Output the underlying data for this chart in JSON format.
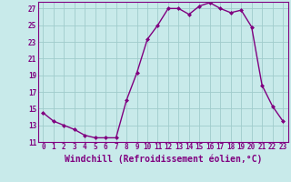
{
  "x": [
    0,
    1,
    2,
    3,
    4,
    5,
    6,
    7,
    8,
    9,
    10,
    11,
    12,
    13,
    14,
    15,
    16,
    17,
    18,
    19,
    20,
    21,
    22,
    23
  ],
  "y": [
    14.5,
    13.5,
    13.0,
    12.5,
    11.8,
    11.5,
    11.5,
    11.5,
    16.0,
    19.3,
    23.3,
    25.0,
    27.0,
    27.0,
    26.3,
    27.3,
    27.7,
    27.0,
    26.5,
    26.8,
    24.8,
    17.8,
    15.3,
    13.5
  ],
  "line_color": "#800080",
  "marker": "D",
  "marker_size": 2.0,
  "bg_color": "#c8eaea",
  "grid_color": "#a0cccc",
  "xlabel": "Windchill (Refroidissement éolien,°C)",
  "ylim": [
    11,
    27.8
  ],
  "xlim": [
    -0.5,
    23.5
  ],
  "yticks": [
    11,
    13,
    15,
    17,
    19,
    21,
    23,
    25,
    27
  ],
  "xticks": [
    0,
    1,
    2,
    3,
    4,
    5,
    6,
    7,
    8,
    9,
    10,
    11,
    12,
    13,
    14,
    15,
    16,
    17,
    18,
    19,
    20,
    21,
    22,
    23
  ],
  "tick_color": "#800080",
  "tick_fontsize": 5.5,
  "xlabel_fontsize": 7.0,
  "line_width": 1.0
}
